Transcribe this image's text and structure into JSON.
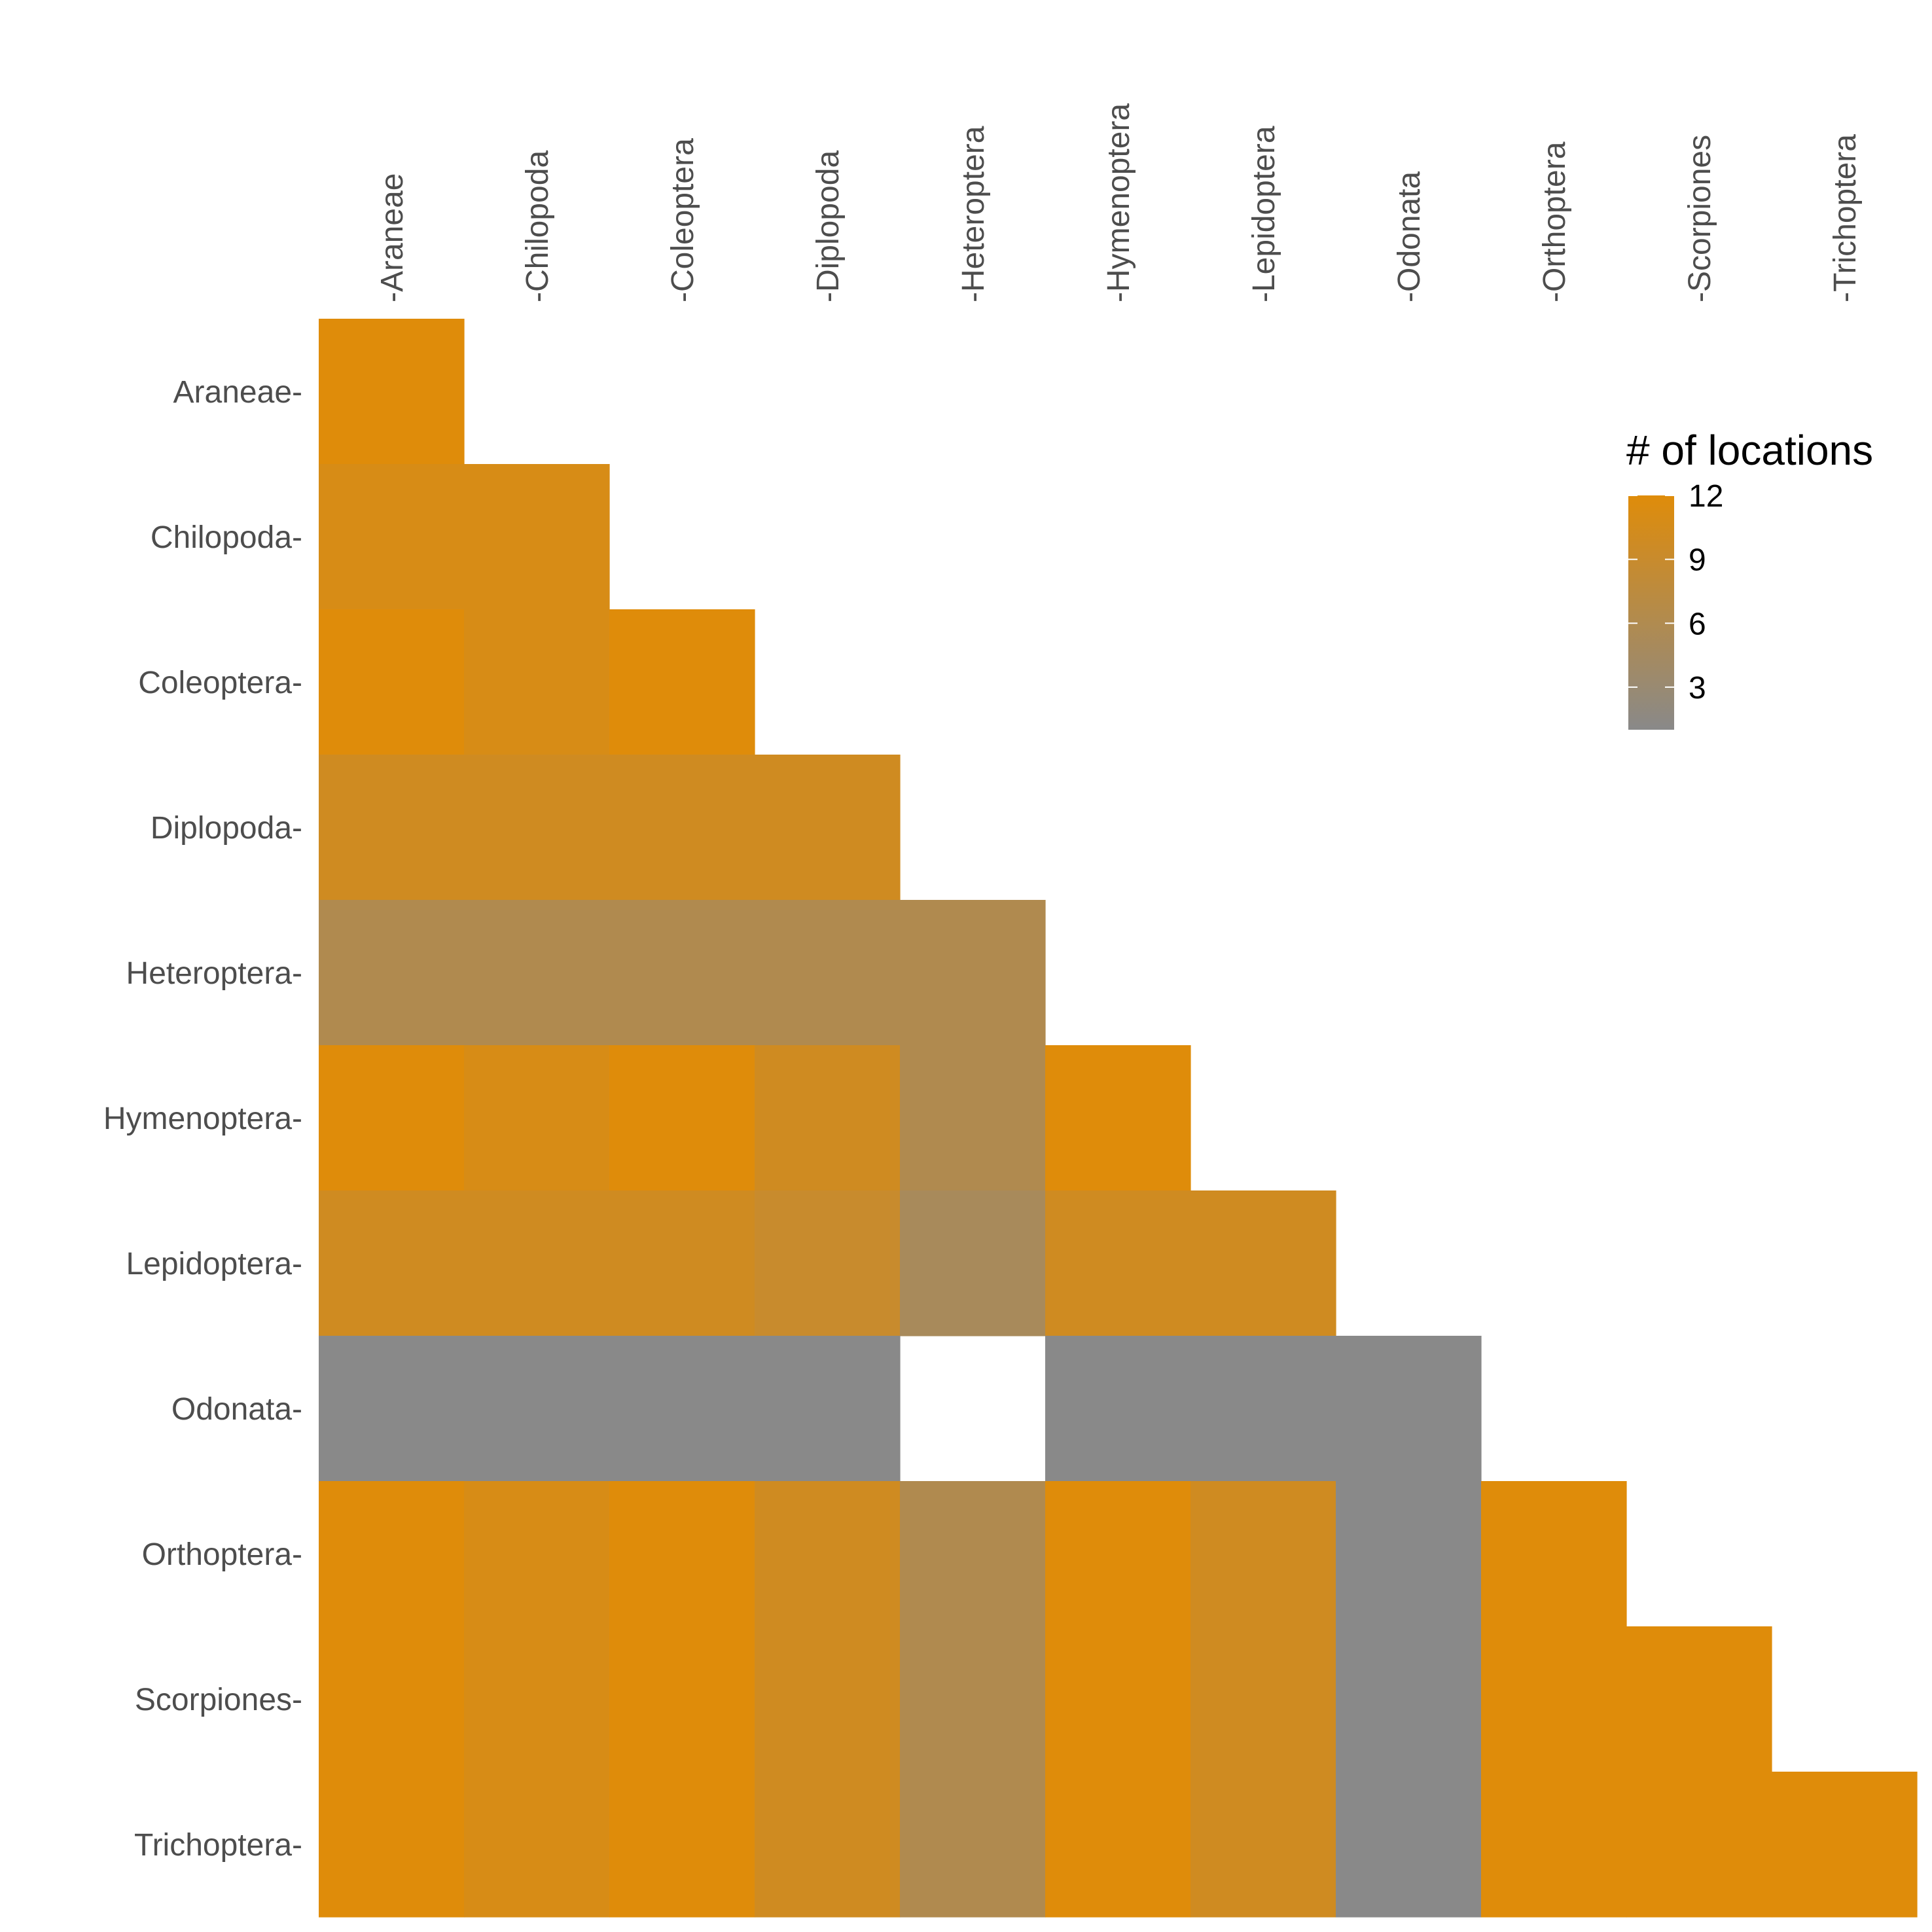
{
  "chart_data": {
    "type": "heatmap",
    "x_categories": [
      "Araneae",
      "Chilopoda",
      "Coleoptera",
      "Diplopoda",
      "Heteroptera",
      "Hymenoptera",
      "Lepidoptera",
      "Odonata",
      "Orthoptera",
      "Scorpiones",
      "Trichoptera"
    ],
    "y_categories": [
      "Araneae",
      "Chilopoda",
      "Coleoptera",
      "Diplopoda",
      "Heteroptera",
      "Hymenoptera",
      "Lepidoptera",
      "Odonata",
      "Orthoptera",
      "Scorpiones",
      "Trichoptera"
    ],
    "values": [
      [
        12,
        null,
        null,
        null,
        null,
        null,
        null,
        null,
        null,
        null,
        null
      ],
      [
        11,
        11,
        null,
        null,
        null,
        null,
        null,
        null,
        null,
        null,
        null
      ],
      [
        12,
        11,
        12,
        null,
        null,
        null,
        null,
        null,
        null,
        null,
        null
      ],
      [
        10,
        10,
        10,
        10,
        null,
        null,
        null,
        null,
        null,
        null,
        null
      ],
      [
        6,
        6,
        6,
        6,
        6,
        null,
        null,
        null,
        null,
        null,
        null
      ],
      [
        12,
        11,
        12,
        10,
        6,
        12,
        null,
        null,
        null,
        null,
        null
      ],
      [
        10,
        10,
        10,
        9,
        5,
        10,
        10,
        null,
        null,
        null,
        null
      ],
      [
        1,
        1,
        1,
        1,
        null,
        1,
        1,
        1,
        null,
        null,
        null
      ],
      [
        12,
        11,
        12,
        10,
        6,
        12,
        10,
        1,
        12,
        null,
        null
      ],
      [
        12,
        11,
        12,
        10,
        6,
        12,
        10,
        1,
        12,
        12,
        null
      ],
      [
        12,
        11,
        12,
        10,
        6,
        12,
        10,
        1,
        12,
        12,
        12
      ]
    ],
    "x_tick_prefix": "-",
    "y_tick_suffix": "-",
    "value_range": [
      1,
      12
    ],
    "color_low": "#898989",
    "color_high": "#df8c0a",
    "grid": false,
    "legend": {
      "title": "# of locations",
      "ticks": [
        12,
        9,
        6,
        3
      ],
      "placement": "top-right"
    }
  }
}
